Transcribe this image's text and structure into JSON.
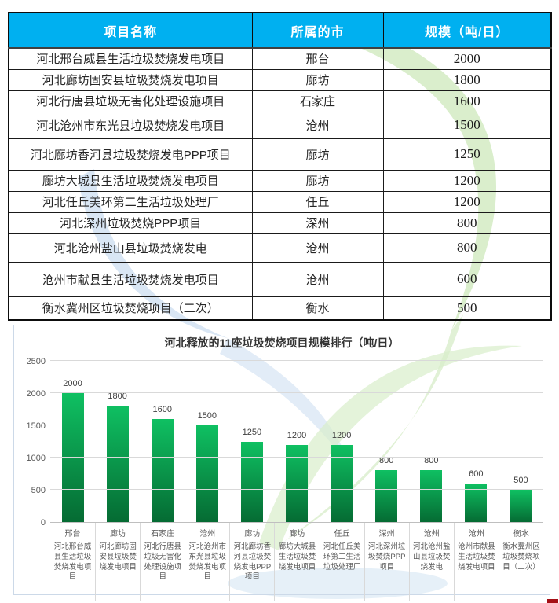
{
  "table": {
    "headers": [
      "项目名称",
      "所属的市",
      "规模（吨/日）"
    ],
    "rows": [
      {
        "name": "河北邢台威县生活垃圾焚烧发电项目",
        "city": "邢台",
        "scale": "2000"
      },
      {
        "name": "河北廊坊固安县垃圾焚烧发电项目",
        "city": "廊坊",
        "scale": "1800"
      },
      {
        "name": "河北行唐县垃圾无害化处理设施项目",
        "city": "石家庄",
        "scale": "1600"
      },
      {
        "name": "河北沧州市东光县垃圾焚烧发电项目",
        "city": "沧州",
        "scale": "1500"
      },
      {
        "name": "河北廊坊香河县垃圾焚烧发电PPP项目",
        "city": "廊坊",
        "scale": "1250"
      },
      {
        "name": "廊坊大城县生活垃圾焚烧发电项目",
        "city": "廊坊",
        "scale": "1200"
      },
      {
        "name": "河北任丘美环第二生活垃圾处理厂",
        "city": "任丘",
        "scale": "1200"
      },
      {
        "name": "河北深州垃圾焚烧PPP项目",
        "city": "深州",
        "scale": "800"
      },
      {
        "name": "河北沧州盐山县垃圾焚烧发电",
        "city": "沧州",
        "scale": "800"
      },
      {
        "name": "沧州市献县生活垃圾焚烧发电项目",
        "city": "沧州",
        "scale": "600"
      },
      {
        "name": "衡水冀州区垃圾焚烧项目（二次）",
        "city": "衡水",
        "scale": "500"
      }
    ]
  },
  "chart_data": {
    "type": "bar",
    "title": "河北释放的11座垃圾焚烧项目规模排行（吨/日）",
    "categories": [
      "邢台",
      "廊坊",
      "石家庄",
      "沧州",
      "廊坊",
      "廊坊",
      "任丘",
      "深州",
      "沧州",
      "沧州",
      "衡水"
    ],
    "category_sublabels": [
      "河北邢台威县生活垃圾焚烧发电项目",
      "河北廊坊固安县垃圾焚烧发电项目",
      "河北行唐县垃圾无害化处理设施项目",
      "河北沧州市东光县垃圾焚烧发电项目",
      "河北廊坊香河县垃圾焚烧发电PPP项目",
      "廊坊大城县生活垃圾焚烧发电项目",
      "河北任丘美环第二生活垃圾处理厂",
      "河北深州垃圾焚烧PPP项目",
      "河北沧州盐山县垃圾焚烧发电",
      "沧州市献县生活垃圾焚烧发电项目",
      "衡水冀州区垃圾焚烧项目（二次）"
    ],
    "values": [
      2000,
      1800,
      1600,
      1500,
      1250,
      1200,
      1200,
      800,
      800,
      600,
      500
    ],
    "data_labels": [
      "2000",
      "1800",
      "1600",
      "1500",
      "1250",
      "1200",
      "1200",
      "800",
      "800",
      "600",
      "500"
    ],
    "xlabel": "",
    "ylabel": "",
    "ylim": [
      0,
      2500
    ],
    "yticks": [
      0,
      500,
      1000,
      1500,
      2000,
      2500
    ],
    "grid": true,
    "legend": false
  },
  "colors": {
    "header_bg": "#00b0f0",
    "header_text": "#ffffff",
    "bar_top": "#0fc062",
    "bar_bottom": "#056b33",
    "gridline": "#d9d9d9",
    "tick_text": "#595959",
    "watermark_green": "#cde8bb",
    "watermark_blue": "#cfe0f1"
  }
}
